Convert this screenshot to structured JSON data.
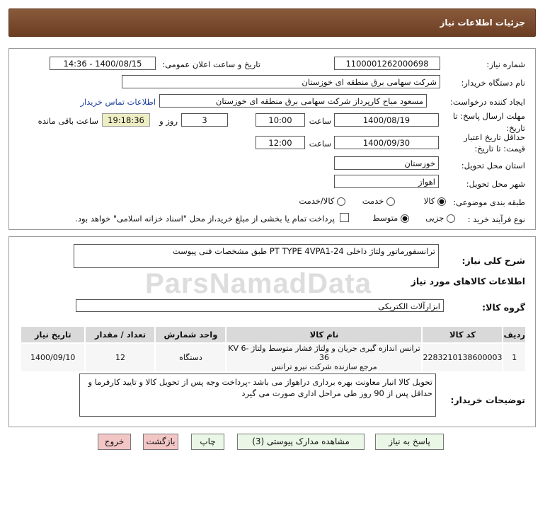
{
  "header": {
    "title": "جزئیات اطلاعات نیاز"
  },
  "need_number": {
    "label": "شماره نیاز:",
    "value": "1100001262000698"
  },
  "announce": {
    "label": "تاریخ و ساعت اعلان عمومی:",
    "value": "1400/08/15 - 14:36"
  },
  "buyer": {
    "label": "نام دستگاه خریدار:",
    "value": "شرکت سهامی برق منطقه ای خوزستان"
  },
  "creator": {
    "label": "ایجاد کننده درخواست:",
    "value": "مسعود میاح کارپرداز شرکت سهامی برق منطقه ای خوزستان",
    "contact_link": "اطلاعات تماس خریدار"
  },
  "deadline": {
    "label1": "مهلت ارسال پاسخ: تا",
    "label2": "تاریخ:",
    "date": "1400/08/19",
    "time_label": "ساعت",
    "time": "10:00",
    "days": "3",
    "days_label": "روز و",
    "remaining": "19:18:36",
    "remaining_label": "ساعت باقی مانده"
  },
  "validity": {
    "label1": "حداقل تاریخ اعتبار",
    "label2": "قیمت: تا تاریخ:",
    "date": "1400/09/30",
    "time_label": "ساعت",
    "time": "12:00"
  },
  "province": {
    "label": "استان محل تحویل:",
    "value": "خوزستان"
  },
  "city": {
    "label": "شهر محل تحویل:",
    "value": "اهواز"
  },
  "category": {
    "label": "طبقه بندی موضوعی:",
    "options": [
      "کالا",
      "خدمت",
      "کالا/خدمت"
    ],
    "selected": "کالا"
  },
  "process": {
    "label": "نوع فرآیند خرید :",
    "options": [
      "جزیی",
      "متوسط"
    ],
    "selected": "متوسط",
    "checkbox_label": "پرداخت تمام یا بخشی از مبلغ خرید،از محل \"اسناد خزانه اسلامی\" خواهد بود."
  },
  "description": {
    "label": "شرح کلی نیاز:",
    "value": "ترانسفورماتور ولتاژ داخلی PT TYPE 4VPA1-24 طبق مشخصات فنی پیوست"
  },
  "goods_info_title": "اطلاعات کالاهای مورد نیاز",
  "goods_group": {
    "label": "گروه کالا:",
    "value": "ابزارآلات الکتریکی"
  },
  "table": {
    "headers": [
      "ردیف",
      "کد کالا",
      "نام کالا",
      "واحد شمارش",
      "تعداد / مقدار",
      "تاریخ نیاز"
    ],
    "rows": [
      {
        "index": "1",
        "code": "2283210138600003",
        "name_line1": "ترانس اندازه گیری جریان و ولتاژ فشار متوسط ولتاژ KV 6-36",
        "name_line2": "مرجع سازنده شرکت نیرو ترانس",
        "unit": "دستگاه",
        "qty": "12",
        "date": "1400/09/10"
      }
    ]
  },
  "buyer_notes": {
    "label": "توضیحات خریدار:",
    "value": "تحویل کالا انبار معاونت بهره برداری دراهواز می باشد -پرداخت وجه پس از تحویل کالا و تایید کارفرما و حداقل پس از 90 روز طی مراحل اداری صورت می گیرد"
  },
  "buttons": {
    "reply": "پاسخ به نیاز",
    "attachments": "مشاهده مدارک پیوستی (3)",
    "print": "چاپ",
    "back": "بازگشت",
    "exit": "خروج"
  },
  "watermark": "ParsNamadData"
}
